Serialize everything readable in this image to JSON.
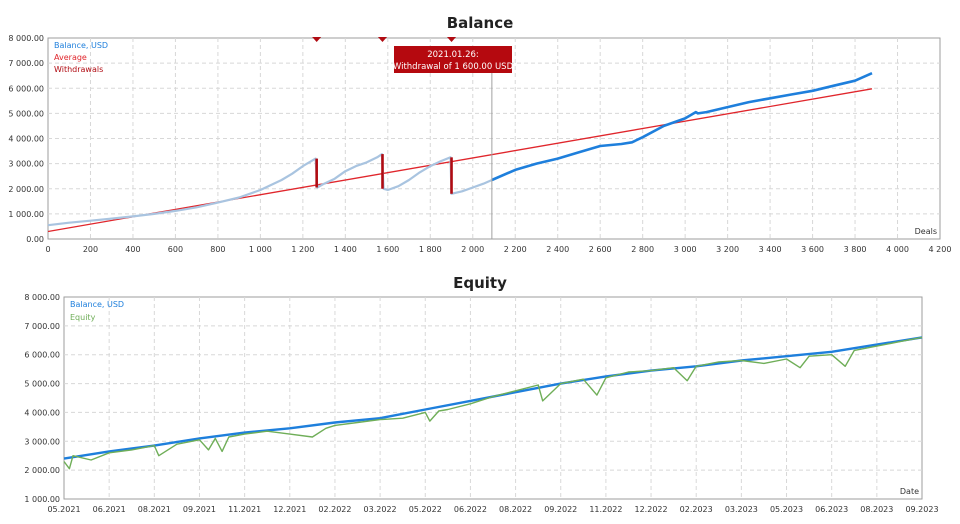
{
  "colors": {
    "balance": "#1E7FDC",
    "balance_light": "#A9C4E0",
    "average": "#E0262C",
    "withdrawals": "#B00B12",
    "equity": "#6FAE58",
    "tooltip_bg": "#B5090F",
    "tooltip_text": "#FFFFFF",
    "grid": "#D8D8D8",
    "axis": "#9E9E9E",
    "label": "#333333"
  },
  "chart_data": [
    {
      "type": "line",
      "title": "Balance",
      "xlabel": "Deals",
      "ylabel": "",
      "xlim": [
        0,
        4200
      ],
      "ylim": [
        0,
        8000
      ],
      "x_ticks": [
        0,
        200,
        400,
        600,
        800,
        1000,
        1200,
        1400,
        1600,
        1800,
        2000,
        2200,
        2400,
        2600,
        2800,
        3000,
        3200,
        3400,
        3600,
        3800,
        4000,
        4200
      ],
      "x_tick_labels": [
        "0",
        "200",
        "400",
        "600",
        "800",
        "1 000",
        "1 200",
        "1 400",
        "1 600",
        "1 800",
        "2 000",
        "2 200",
        "2 400",
        "2 600",
        "2 800",
        "3 000",
        "3 200",
        "3 400",
        "3 600",
        "3 800",
        "4 000",
        "4 200"
      ],
      "y_ticks": [
        0,
        1000,
        2000,
        3000,
        4000,
        5000,
        6000,
        7000,
        8000
      ],
      "y_tick_labels": [
        "0.00",
        "1 000.00",
        "2 000.00",
        "3 000.00",
        "4 000.00",
        "5 000.00",
        "6 000.00",
        "7 000.00",
        "8 000.00"
      ],
      "legend_position": "top-left",
      "legend": [
        "Balance, USD",
        "Average",
        "Withdrawals"
      ],
      "grid": true,
      "series": [
        {
          "name": "Balance, USD",
          "x": [
            0,
            100,
            200,
            300,
            400,
            500,
            600,
            700,
            800,
            900,
            1000,
            1050,
            1100,
            1150,
            1200,
            1260,
            1268,
            1300,
            1350,
            1400,
            1450,
            1500,
            1550,
            1572,
            1580,
            1600,
            1650,
            1700,
            1750,
            1800,
            1850,
            1895,
            1900,
            1950,
            2000,
            2050,
            2090
          ],
          "y": [
            550,
            650,
            730,
            810,
            900,
            1000,
            1120,
            1260,
            1450,
            1650,
            1950,
            2150,
            2350,
            2600,
            2900,
            3200,
            2050,
            2200,
            2400,
            2700,
            2900,
            3050,
            3250,
            3380,
            2000,
            1950,
            2100,
            2350,
            2650,
            2900,
            3100,
            3250,
            1800,
            1900,
            2050,
            2200,
            2350
          ]
        },
        {
          "name": "Balance, USD",
          "x": [
            2090,
            2200,
            2300,
            2400,
            2500,
            2600,
            2700,
            2750,
            2800,
            2900,
            3000,
            3050,
            3060,
            3100,
            3200,
            3300,
            3400,
            3500,
            3600,
            3700,
            3800,
            3880
          ],
          "y": [
            2350,
            2750,
            3000,
            3200,
            3450,
            3700,
            3780,
            3850,
            4050,
            4500,
            4800,
            5050,
            5000,
            5050,
            5250,
            5450,
            5600,
            5750,
            5900,
            6100,
            6300,
            6600
          ]
        },
        {
          "name": "Average",
          "x": [
            0,
            3880
          ],
          "y": [
            300,
            5980
          ]
        }
      ],
      "withdrawals": [
        {
          "x": 1265,
          "from": 3200,
          "to": 2050
        },
        {
          "x": 1575,
          "from": 3380,
          "to": 2000
        },
        {
          "x": 1900,
          "from": 3250,
          "to": 1800
        }
      ],
      "marker_x": 2090,
      "tooltip": {
        "date": "2021.01.26:",
        "text": "Withdrawal of 1 600.00 USD"
      }
    },
    {
      "type": "line",
      "title": "Equity",
      "xlabel": "Date",
      "ylabel": "",
      "x_tick_labels": [
        "05.2021",
        "06.2021",
        "08.2021",
        "09.2021",
        "11.2021",
        "12.2021",
        "02.2022",
        "03.2022",
        "05.2022",
        "06.2022",
        "08.2022",
        "09.2022",
        "11.2022",
        "12.2022",
        "02.2023",
        "03.2023",
        "05.2023",
        "06.2023",
        "08.2023",
        "09.2023"
      ],
      "ylim": [
        1000,
        8000
      ],
      "y_ticks": [
        1000,
        2000,
        3000,
        4000,
        5000,
        6000,
        7000,
        8000
      ],
      "y_tick_labels": [
        "1 000.00",
        "2 000.00",
        "3 000.00",
        "4 000.00",
        "5 000.00",
        "6 000.00",
        "7 000.00",
        "8 000.00"
      ],
      "legend_position": "top-left",
      "legend": [
        "Balance, USD",
        "Equity"
      ],
      "grid": true,
      "series": [
        {
          "name": "Balance, USD",
          "x": [
            0,
            1,
            2,
            3,
            4,
            5,
            6,
            7,
            8,
            9,
            10,
            11,
            12,
            13,
            14,
            15,
            16,
            17,
            18,
            19
          ],
          "y": [
            2400,
            2650,
            2850,
            3100,
            3300,
            3450,
            3650,
            3800,
            4100,
            4400,
            4700,
            5000,
            5250,
            5450,
            5600,
            5800,
            5950,
            6100,
            6350,
            6600
          ]
        },
        {
          "name": "Equity",
          "x": [
            0,
            0.12,
            0.2,
            0.6,
            1,
            1.5,
            2,
            2.1,
            2.5,
            3,
            3.2,
            3.35,
            3.5,
            3.65,
            4,
            4.5,
            5,
            5.5,
            5.8,
            6,
            6.5,
            7,
            7.5,
            8,
            8.1,
            8.3,
            8.5,
            9,
            9.5,
            10,
            10.5,
            10.6,
            11,
            11.5,
            11.8,
            12,
            12.5,
            13,
            13.5,
            13.8,
            14,
            14.5,
            15,
            15.5,
            16,
            16.3,
            16.5,
            17,
            17.3,
            17.5,
            18,
            18.5,
            19
          ],
          "y": [
            2300,
            2050,
            2500,
            2350,
            2600,
            2700,
            2850,
            2500,
            2900,
            3050,
            2700,
            3100,
            2650,
            3150,
            3250,
            3350,
            3250,
            3150,
            3450,
            3550,
            3650,
            3750,
            3800,
            4000,
            3700,
            4050,
            4100,
            4300,
            4550,
            4750,
            4950,
            4400,
            5000,
            5150,
            4600,
            5200,
            5400,
            5450,
            5550,
            5100,
            5600,
            5750,
            5800,
            5700,
            5850,
            5550,
            5950,
            6000,
            5600,
            6150,
            6300,
            6450,
            6600
          ]
        }
      ]
    }
  ]
}
